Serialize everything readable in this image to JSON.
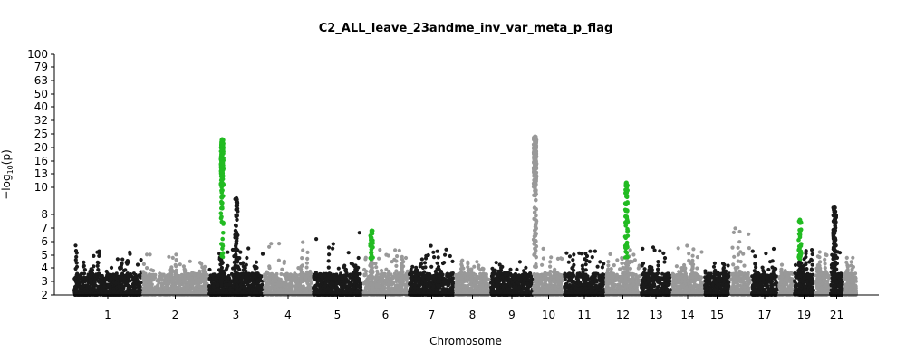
{
  "chart_data": {
    "type": "scatter",
    "title": "C2_ALL_leave_23andme_inv_var_meta_p_flag",
    "xlabel": "Chromosome",
    "ylabel_main": "−log",
    "ylabel_sub": "10",
    "ylabel_tail": "(p)",
    "y_scale": "compressed above threshold",
    "y_ticks": [
      "2",
      "3",
      "4",
      "5",
      "6",
      "7",
      "8",
      "10",
      "13",
      "16",
      "20",
      "25",
      "32",
      "40",
      "50",
      "63",
      "79",
      "100"
    ],
    "x_tick_labels": [
      "1",
      "2",
      "3",
      "4",
      "5",
      "6",
      "7",
      "8",
      "9",
      "10",
      "11",
      "12",
      "13",
      "14",
      "15",
      "17",
      "19",
      "21"
    ],
    "significance_line": 7.3,
    "colors": {
      "dark": "#1a1a1a",
      "light": "#999999",
      "hit": "#22bb22",
      "line": "#e06060"
    },
    "chromosomes": [
      {
        "chr": "1",
        "label": "1",
        "peak": 5.9,
        "tone": "dark"
      },
      {
        "chr": "2",
        "label": "2",
        "peak": 5.2,
        "tone": "light"
      },
      {
        "chr": "3",
        "label": "3",
        "peak": 23,
        "tone": "dark",
        "hit": {
          "at": 0.25,
          "max": 23,
          "green": true
        }
      },
      {
        "chr": "4",
        "label": "4",
        "peak": 6.0,
        "tone": "light"
      },
      {
        "chr": "5",
        "label": "5",
        "peak": 7.0,
        "tone": "dark"
      },
      {
        "chr": "6",
        "label": "6",
        "peak": 6.8,
        "tone": "light",
        "hit": {
          "at": 0.2,
          "max": 6.8,
          "green": true
        }
      },
      {
        "chr": "7",
        "label": "7",
        "peak": 5.7,
        "tone": "dark"
      },
      {
        "chr": "8",
        "label": "8",
        "peak": 4.8,
        "tone": "light"
      },
      {
        "chr": "9",
        "label": "9",
        "peak": 4.8,
        "tone": "dark"
      },
      {
        "chr": "10",
        "label": "10",
        "peak": 24,
        "tone": "light",
        "hit": {
          "at": 0.05,
          "max": 24,
          "green": false
        }
      },
      {
        "chr": "11",
        "label": "11",
        "peak": 5.4,
        "tone": "dark"
      },
      {
        "chr": "12",
        "label": "12",
        "peak": 11,
        "tone": "light",
        "hit": {
          "at": 0.6,
          "max": 11,
          "green": true
        }
      },
      {
        "chr": "13",
        "label": "13",
        "peak": 5.7,
        "tone": "dark"
      },
      {
        "chr": "14",
        "label": "14",
        "peak": 5.7,
        "tone": "light"
      },
      {
        "chr": "15",
        "label": "15",
        "peak": 4.5,
        "tone": "dark"
      },
      {
        "chr": "16",
        "label": "",
        "peak": 7.0,
        "tone": "light"
      },
      {
        "chr": "17",
        "label": "17",
        "peak": 5.5,
        "tone": "dark"
      },
      {
        "chr": "18",
        "label": "",
        "peak": 4.6,
        "tone": "light"
      },
      {
        "chr": "19",
        "label": "19",
        "peak": 7.6,
        "tone": "dark",
        "hit": {
          "at": 0.3,
          "max": 7.6,
          "green": true
        }
      },
      {
        "chr": "20",
        "label": "",
        "peak": 5.3,
        "tone": "light"
      },
      {
        "chr": "21",
        "label": "21",
        "peak": 8.5,
        "tone": "dark",
        "hit": {
          "at": 0.35,
          "max": 8.5,
          "green": false
        }
      },
      {
        "chr": "22",
        "label": "",
        "peak": 4.9,
        "tone": "light"
      }
    ]
  }
}
